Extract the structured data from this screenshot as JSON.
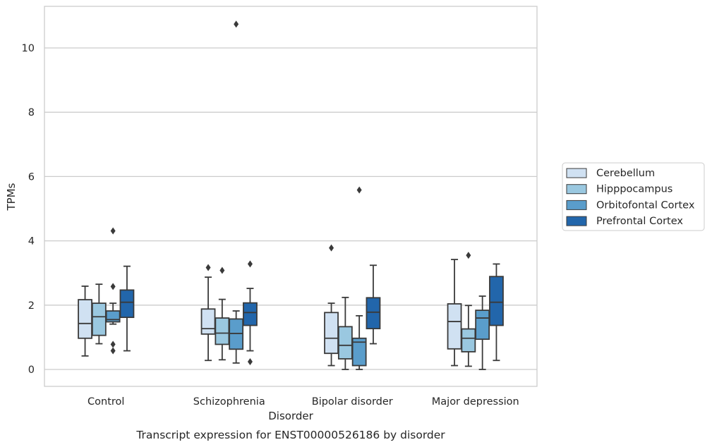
{
  "chart_data": {
    "type": "box",
    "xlabel": "Disorder",
    "ylabel": "TPMs",
    "caption": "Transcript expression for ENST00000526186 by disorder",
    "categories": [
      "Control",
      "Schizophrenia",
      "Bipolar disorder",
      "Major depression"
    ],
    "ylim": [
      -0.5,
      11.3
    ],
    "yticks": [
      0,
      2,
      4,
      6,
      8,
      10
    ],
    "grid": "horizontal",
    "legend_position": "right",
    "series": [
      {
        "name": "Cerebellum",
        "color": "#d0e1f2",
        "boxes": [
          {
            "whislo": 0.42,
            "q1": 0.97,
            "med": 1.43,
            "q3": 2.17,
            "whishi": 2.59,
            "fliers": []
          },
          {
            "whislo": 0.28,
            "q1": 1.1,
            "med": 1.27,
            "q3": 1.88,
            "whishi": 2.87,
            "fliers": [
              3.17
            ]
          },
          {
            "whislo": 0.12,
            "q1": 0.5,
            "med": 0.97,
            "q3": 1.77,
            "whishi": 2.06,
            "fliers": [
              3.78
            ]
          },
          {
            "whislo": 0.12,
            "q1": 0.64,
            "med": 1.49,
            "q3": 2.04,
            "whishi": 3.42,
            "fliers": []
          }
        ]
      },
      {
        "name": "Hipppocampus",
        "color": "#9ac8e0",
        "boxes": [
          {
            "whislo": 0.8,
            "q1": 1.06,
            "med": 1.64,
            "q3": 2.06,
            "whishi": 2.65,
            "fliers": []
          },
          {
            "whislo": 0.3,
            "q1": 0.78,
            "med": 1.13,
            "q3": 1.6,
            "whishi": 2.18,
            "fliers": [
              3.08
            ]
          },
          {
            "whislo": 0.0,
            "q1": 0.33,
            "med": 0.75,
            "q3": 1.33,
            "whishi": 2.24,
            "fliers": []
          },
          {
            "whislo": 0.1,
            "q1": 0.55,
            "med": 0.97,
            "q3": 1.26,
            "whishi": 1.99,
            "fliers": [
              3.55
            ]
          }
        ]
      },
      {
        "name": "Orbitofontal Cortex",
        "color": "#5a9dcb",
        "boxes": [
          {
            "whislo": 1.41,
            "q1": 1.48,
            "med": 1.55,
            "q3": 1.82,
            "whishi": 2.06,
            "fliers": [
              4.31,
              2.58,
              0.78,
              0.58
            ]
          },
          {
            "whislo": 0.2,
            "q1": 0.63,
            "med": 1.12,
            "q3": 1.57,
            "whishi": 1.82,
            "fliers": [
              10.74
            ]
          },
          {
            "whislo": 0.0,
            "q1": 0.12,
            "med": 0.85,
            "q3": 0.97,
            "whishi": 1.67,
            "fliers": [
              5.58
            ]
          },
          {
            "whislo": 0.0,
            "q1": 0.94,
            "med": 1.6,
            "q3": 1.84,
            "whishi": 2.28,
            "fliers": []
          }
        ]
      },
      {
        "name": "Prefrontal Cortex",
        "color": "#2266ab",
        "boxes": [
          {
            "whislo": 0.58,
            "q1": 1.62,
            "med": 2.09,
            "q3": 2.47,
            "whishi": 3.21,
            "fliers": []
          },
          {
            "whislo": 0.58,
            "q1": 1.37,
            "med": 1.77,
            "q3": 2.07,
            "whishi": 2.52,
            "fliers": [
              3.28,
              0.24
            ]
          },
          {
            "whislo": 0.8,
            "q1": 1.27,
            "med": 1.78,
            "q3": 2.23,
            "whishi": 3.24,
            "fliers": []
          },
          {
            "whislo": 0.28,
            "q1": 1.37,
            "med": 2.09,
            "q3": 2.89,
            "whishi": 3.28,
            "fliers": []
          }
        ]
      }
    ]
  }
}
